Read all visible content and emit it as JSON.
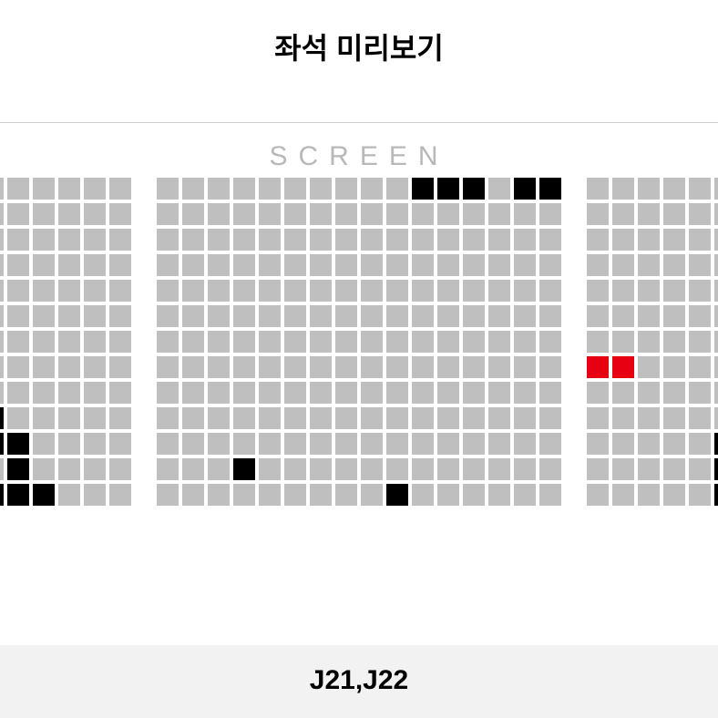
{
  "title": "좌석 미리보기",
  "screen_label": "SCREEN",
  "selected_seats_label": "J21,J22",
  "colors": {
    "available": "#bfbfbf",
    "occupied": "#000000",
    "selected": "#e60012",
    "background": "#ffffff",
    "footer_bg": "#f2f2f2",
    "divider": "#d0d0d0",
    "screen_text": "#b8b8b8"
  },
  "seat_size": 24,
  "seat_gap": 4,
  "section_gap": 28,
  "rows": 13,
  "sections": [
    {
      "name": "left",
      "cols": 6,
      "occupied": [
        [
          9,
          0
        ],
        [
          10,
          0
        ],
        [
          10,
          1
        ],
        [
          11,
          1
        ],
        [
          12,
          0
        ],
        [
          12,
          2
        ],
        [
          12,
          1
        ]
      ],
      "selected": []
    },
    {
      "name": "center",
      "cols": 16,
      "occupied": [
        [
          0,
          10
        ],
        [
          0,
          11
        ],
        [
          0,
          12
        ],
        [
          0,
          14
        ],
        [
          0,
          15
        ],
        [
          11,
          3
        ],
        [
          12,
          9
        ]
      ],
      "selected": []
    },
    {
      "name": "right",
      "cols": 6,
      "occupied": [
        [
          10,
          5
        ],
        [
          11,
          5
        ],
        [
          12,
          5
        ]
      ],
      "selected": [
        [
          7,
          0
        ],
        [
          7,
          1
        ]
      ]
    }
  ]
}
